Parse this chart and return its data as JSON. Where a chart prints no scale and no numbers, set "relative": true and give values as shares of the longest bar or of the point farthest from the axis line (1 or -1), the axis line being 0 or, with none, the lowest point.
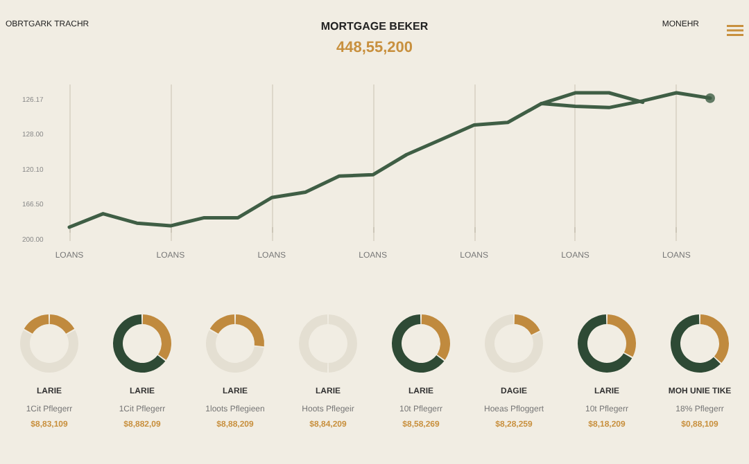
{
  "chart_data": [
    {
      "type": "line",
      "title": "MORTGAGE BEKER",
      "subtitle": "448,55,200",
      "annotations": [
        "OBRTGARK TRACHR",
        "MONEHR",
        "126.17",
        "128.00",
        "120.10",
        "166.50",
        "200.00"
      ],
      "relative": true,
      "categories": [
        "LOANS",
        null,
        null,
        "LOANS",
        null,
        null,
        "LOANS",
        null,
        null,
        "LOANS",
        null,
        null,
        "LOANS",
        null,
        null,
        "LOANS",
        null,
        null,
        "LOANS",
        null
      ],
      "grid": "x",
      "marker": "none",
      "line_style": "solid",
      "series": [
        {
          "color": "#3f5e45",
          "values": [
            0,
            0.1,
            0.03,
            0.01,
            0.07,
            0.07,
            0.22,
            0.26,
            0.38,
            0.39,
            0.54,
            0.65,
            0.76,
            0.78,
            0.92,
            0.9,
            0.89,
            0.94,
            1,
            0.96
          ]
        },
        {
          "color": "#3f5e45",
          "values": [
            null,
            null,
            null,
            null,
            null,
            null,
            null,
            null,
            null,
            null,
            null,
            null,
            null,
            null,
            0.92,
            1,
            1,
            0.93,
            null,
            null
          ]
        },
        {
          "type": "scatter",
          "marker": "circle",
          "color": "#3f5e45",
          "values": [
            null,
            null,
            null,
            null,
            null,
            null,
            null,
            null,
            null,
            null,
            null,
            null,
            null,
            null,
            null,
            null,
            null,
            null,
            null,
            0.96
          ]
        }
      ]
    },
    {
      "type": "donut",
      "title": "LARIE",
      "subtitle": "1Cit Pflegerr",
      "annotations": [
        "$8,83,109"
      ],
      "categories": [
        null,
        null,
        null
      ],
      "values": [
        17,
        66,
        17
      ],
      "colors": [
        "#c08a3e",
        "#e4dfd2",
        "#c08a3e"
      ]
    },
    {
      "type": "donut",
      "title": "LARIE",
      "subtitle": "1Cit Pflegerr",
      "annotations": [
        "$8,882,09"
      ],
      "categories": [
        null,
        null
      ],
      "values": [
        35,
        65
      ],
      "colors": [
        "#c08a3e",
        "#2e4a35"
      ]
    },
    {
      "type": "donut",
      "title": "LARIE",
      "subtitle": "1loots Pflegieen",
      "annotations": [
        "$8,88,209"
      ],
      "categories": [
        null,
        null,
        null
      ],
      "values": [
        27,
        56,
        17
      ],
      "colors": [
        "#c08a3e",
        "#e4dfd2",
        "#c08a3e"
      ]
    },
    {
      "type": "donut",
      "title": "LARIE",
      "subtitle": "Hoots Pflegeir",
      "annotations": [
        "$8,84,209"
      ],
      "categories": [
        null,
        null
      ],
      "values": [
        50,
        50
      ],
      "colors": [
        "#e4dfd2",
        "#e4dfd2"
      ]
    },
    {
      "type": "donut",
      "title": "LARIE",
      "subtitle": "10t Pflegerr",
      "annotations": [
        "$8,58,269"
      ],
      "categories": [
        null,
        null
      ],
      "values": [
        35,
        65
      ],
      "colors": [
        "#c08a3e",
        "#2e4a35"
      ]
    },
    {
      "type": "donut",
      "title": "DAGIE",
      "subtitle": "Hoeas Pfloggert",
      "annotations": [
        "$8,28,259"
      ],
      "categories": [
        null,
        null
      ],
      "values": [
        18,
        82
      ],
      "colors": [
        "#c08a3e",
        "#e4dfd2"
      ]
    },
    {
      "type": "donut",
      "title": "LARIE",
      "subtitle": "10t Pflegerr",
      "annotations": [
        "$8,18,209"
      ],
      "categories": [
        null,
        null
      ],
      "values": [
        33,
        67
      ],
      "colors": [
        "#c08a3e",
        "#2e4a35"
      ]
    },
    {
      "type": "donut",
      "title": "MOH UNIE TIKE",
      "subtitle": "18% Pflegerr",
      "annotations": [
        "$0,88,109"
      ],
      "categories": [
        null,
        null
      ],
      "values": [
        37,
        63
      ],
      "colors": [
        "#c08a3e",
        "#2e4a35"
      ]
    }
  ]
}
